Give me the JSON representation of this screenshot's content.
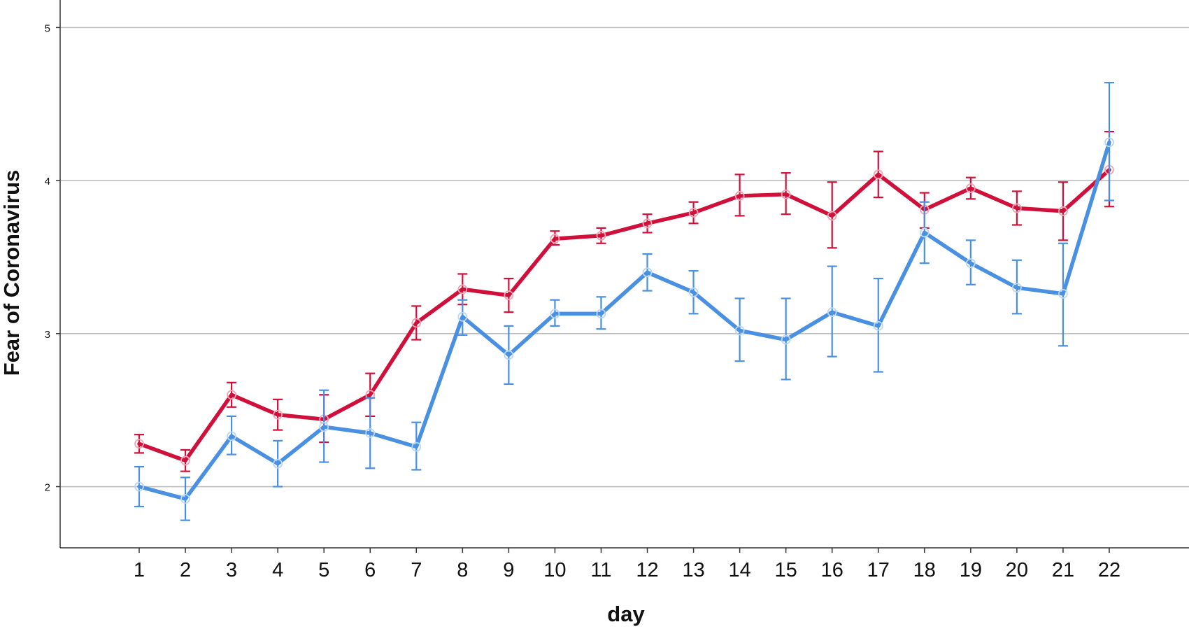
{
  "chart_data": {
    "type": "line",
    "title": "",
    "xlabel": "day",
    "ylabel": "Fear of Coronavirus",
    "x": [
      1,
      2,
      3,
      4,
      5,
      6,
      7,
      8,
      9,
      10,
      11,
      12,
      13,
      14,
      15,
      16,
      17,
      18,
      19,
      20,
      21,
      22
    ],
    "ylim": [
      1.6,
      5.18
    ],
    "yticks": [
      2,
      3,
      4,
      5
    ],
    "grid": true,
    "legend": "none",
    "series": [
      {
        "color": "#D0103A",
        "values": [
          2.28,
          2.17,
          2.6,
          2.47,
          2.44,
          2.6,
          3.07,
          3.29,
          3.25,
          3.62,
          3.64,
          3.72,
          3.79,
          3.9,
          3.91,
          3.77,
          4.04,
          3.81,
          3.95,
          3.82,
          3.8,
          4.07
        ],
        "err_low": [
          2.22,
          2.1,
          2.52,
          2.37,
          2.29,
          2.46,
          2.96,
          3.19,
          3.14,
          3.58,
          3.59,
          3.66,
          3.72,
          3.77,
          3.78,
          3.56,
          3.89,
          3.69,
          3.88,
          3.71,
          3.61,
          3.83
        ],
        "err_high": [
          2.34,
          2.24,
          2.68,
          2.57,
          2.6,
          2.74,
          3.18,
          3.39,
          3.36,
          3.67,
          3.69,
          3.78,
          3.86,
          4.04,
          4.05,
          3.99,
          4.19,
          3.92,
          4.02,
          3.93,
          3.99,
          4.32
        ]
      },
      {
        "color": "#4A90E2",
        "values": [
          2.0,
          1.92,
          2.33,
          2.15,
          2.39,
          2.35,
          2.26,
          3.11,
          2.86,
          3.13,
          3.13,
          3.4,
          3.27,
          3.02,
          2.96,
          3.14,
          3.05,
          3.66,
          3.46,
          3.3,
          3.26,
          4.25
        ],
        "err_low": [
          1.87,
          1.78,
          2.21,
          2.0,
          2.16,
          2.12,
          2.11,
          2.99,
          2.67,
          3.05,
          3.03,
          3.28,
          3.13,
          2.82,
          2.7,
          2.85,
          2.75,
          3.46,
          3.32,
          3.13,
          2.92,
          3.87
        ],
        "err_high": [
          2.13,
          2.06,
          2.46,
          2.3,
          2.63,
          2.58,
          2.42,
          3.22,
          3.05,
          3.22,
          3.24,
          3.52,
          3.41,
          3.23,
          3.23,
          3.44,
          3.36,
          3.86,
          3.61,
          3.48,
          3.59,
          4.64
        ]
      }
    ]
  }
}
